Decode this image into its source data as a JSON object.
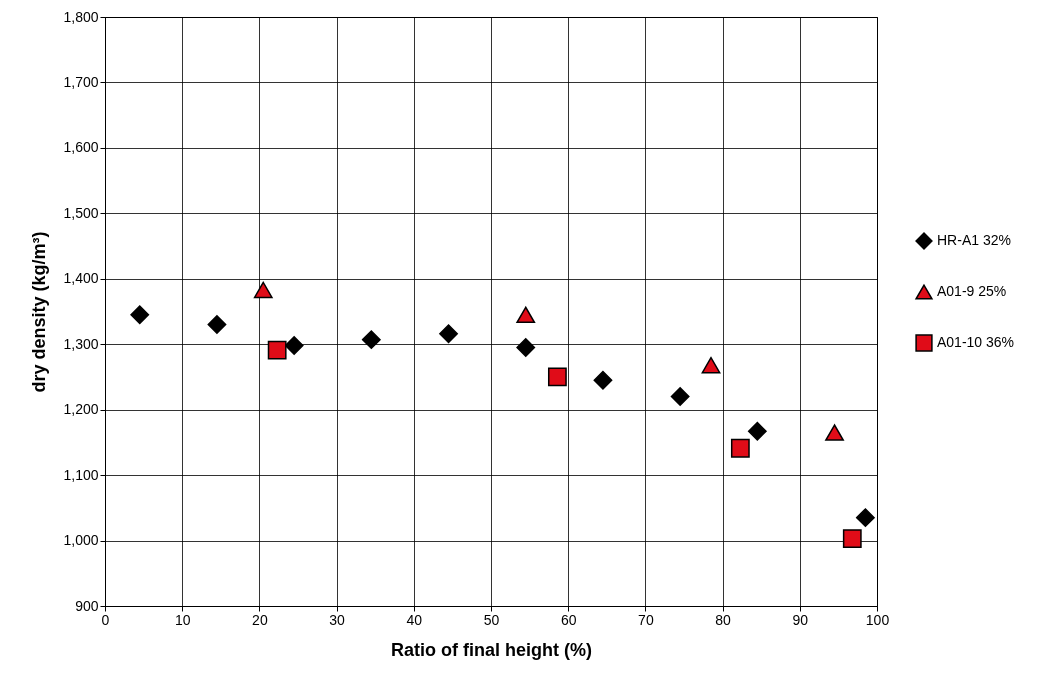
{
  "chart_data": {
    "type": "scatter",
    "xlabel": "Ratio of final height (%)",
    "ylabel": "dry density (kg/m³)",
    "xlim": [
      0,
      100
    ],
    "xticks": [
      0,
      10,
      20,
      30,
      40,
      50,
      60,
      70,
      80,
      90,
      100
    ],
    "ylim": [
      900,
      1800
    ],
    "yticks": [
      900,
      {
        "value": 1000,
        "label": "1,000"
      },
      {
        "value": 1100,
        "label": "1,100"
      },
      {
        "value": 1200,
        "label": "1,200"
      },
      {
        "value": 1300,
        "label": "1,300"
      },
      {
        "value": 1400,
        "label": "1,400"
      },
      {
        "value": 1500,
        "label": "1,500"
      },
      {
        "value": 1600,
        "label": "1,600"
      },
      {
        "value": 1700,
        "label": "1,700"
      },
      {
        "value": 1800,
        "label": "1,800"
      }
    ],
    "grid": true,
    "legend": "right",
    "series": [
      {
        "name": "HR-A1 32%",
        "color": "#000000",
        "marker": "diamond",
        "x": [
          4.5,
          14.5,
          24.5,
          34.5,
          44.5,
          54.5,
          64.5,
          74.5,
          84.5,
          98.5
        ],
        "values": [
          1345,
          1330,
          1298,
          1307,
          1316,
          1295,
          1245,
          1220,
          1167,
          1035
        ]
      },
      {
        "name": "A01-9 25%",
        "color": "#e00c18",
        "marker": "triangle",
        "x": [
          20.5,
          54.5,
          78.5,
          94.5
        ],
        "values": [
          1383,
          1345,
          1268,
          1165
        ]
      },
      {
        "name": "A01-10 36%",
        "color": "#e00c18",
        "marker": "square",
        "x": [
          22.3,
          58.6,
          82.3,
          96.8
        ],
        "values": [
          1291,
          1250,
          1141,
          1003
        ]
      }
    ]
  }
}
